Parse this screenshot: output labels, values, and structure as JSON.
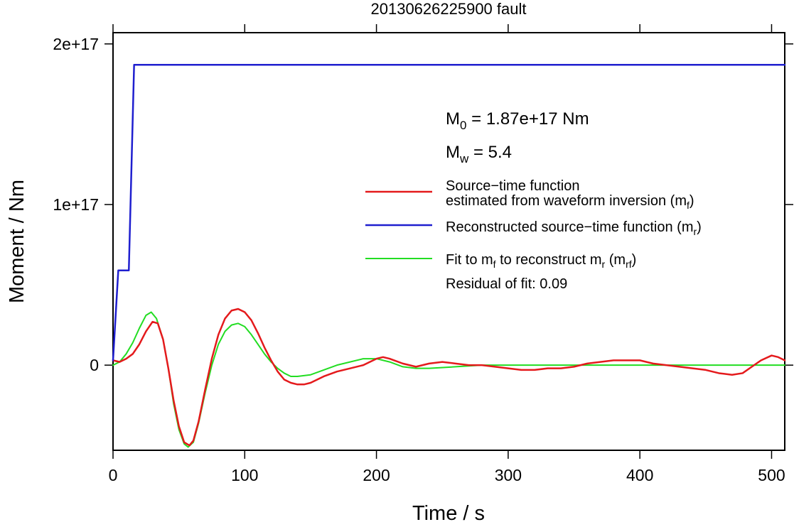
{
  "chart_data": {
    "type": "line",
    "title": "20130626225900 fault",
    "xlabel": "Time / s",
    "ylabel": "Moment / Nm",
    "xlim": [
      0,
      510
    ],
    "ylim": [
      -5.3e+16,
      2.07e+17
    ],
    "x_ticks": [
      0,
      100,
      200,
      300,
      400,
      500
    ],
    "x_tick_labels": [
      "0",
      "100",
      "200",
      "300",
      "400",
      "500"
    ],
    "y_ticks": [
      0,
      1e+17,
      2e+17
    ],
    "y_tick_labels": [
      "0",
      "1e+17",
      "2e+17"
    ],
    "grid": false,
    "legend_position": "right",
    "annotations": {
      "m0": {
        "symbol": "M",
        "sub": "0",
        "text": " = 1.87e+17 Nm"
      },
      "mw": {
        "symbol": "M",
        "sub": "w",
        "text": " = 5.4"
      },
      "residual": "Residual of fit: 0.09"
    },
    "series": [
      {
        "name": "Source−time function estimated from waveform inversion (m_f)",
        "legend_line1": "Source−time function",
        "legend_line2_pre": "estimated from waveform inversion (m",
        "legend_line2_sub": "f",
        "legend_line2_post": ")",
        "color": "#e41a1c",
        "stroke_width": 2.5,
        "points": [
          [
            0,
            3000000000000000.0
          ],
          [
            5,
            2000000000000000.0
          ],
          [
            10,
            4000000000000000.0
          ],
          [
            15,
            7000000000000000.0
          ],
          [
            20,
            1.3e+16
          ],
          [
            25,
            2.1e+16
          ],
          [
            30,
            2.7e+16
          ],
          [
            34,
            2.6e+16
          ],
          [
            38,
            1.6e+16
          ],
          [
            42,
            -2000000000000000.0
          ],
          [
            46,
            -2.2e+16
          ],
          [
            50,
            -3.8e+16
          ],
          [
            54,
            -4.8e+16
          ],
          [
            58,
            -5e+16
          ],
          [
            61,
            -4.7e+16
          ],
          [
            65,
            -3.5e+16
          ],
          [
            70,
            -1.5e+16
          ],
          [
            75,
            4000000000000000.0
          ],
          [
            80,
            1.9e+16
          ],
          [
            85,
            2.9e+16
          ],
          [
            90,
            3.4e+16
          ],
          [
            95,
            3.5e+16
          ],
          [
            100,
            3.3e+16
          ],
          [
            105,
            2.8e+16
          ],
          [
            110,
            2e+16
          ],
          [
            115,
            1.1e+16
          ],
          [
            120,
            3000000000000000.0
          ],
          [
            125,
            -4000000000000000.0
          ],
          [
            130,
            -9000000000000000.0
          ],
          [
            135,
            -1.1e+16
          ],
          [
            140,
            -1.2e+16
          ],
          [
            145,
            -1.2e+16
          ],
          [
            150,
            -1.1e+16
          ],
          [
            160,
            -7000000000000000.0
          ],
          [
            170,
            -4000000000000000.0
          ],
          [
            180,
            -2000000000000000.0
          ],
          [
            190,
            0
          ],
          [
            200,
            4000000000000000.0
          ],
          [
            205,
            5000000000000000.0
          ],
          [
            210,
            4000000000000000.0
          ],
          [
            220,
            1000000000000000.0
          ],
          [
            230,
            -1000000000000000.0
          ],
          [
            240,
            1000000000000000.0
          ],
          [
            250,
            2000000000000000.0
          ],
          [
            260,
            1000000000000000.0
          ],
          [
            270,
            0
          ],
          [
            280,
            0
          ],
          [
            290,
            -1000000000000000.0
          ],
          [
            300,
            -2000000000000000.0
          ],
          [
            310,
            -3000000000000000.0
          ],
          [
            320,
            -3000000000000000.0
          ],
          [
            330,
            -2000000000000000.0
          ],
          [
            340,
            -2000000000000000.0
          ],
          [
            350,
            -1000000000000000.0
          ],
          [
            360,
            1000000000000000.0
          ],
          [
            370,
            2000000000000000.0
          ],
          [
            380,
            3000000000000000.0
          ],
          [
            390,
            3000000000000000.0
          ],
          [
            400,
            3000000000000000.0
          ],
          [
            410,
            1000000000000000.0
          ],
          [
            420,
            0
          ],
          [
            430,
            -1000000000000000.0
          ],
          [
            440,
            -2000000000000000.0
          ],
          [
            450,
            -3000000000000000.0
          ],
          [
            460,
            -5000000000000000.0
          ],
          [
            470,
            -6000000000000000.0
          ],
          [
            478,
            -5000000000000000.0
          ],
          [
            485,
            -1000000000000000.0
          ],
          [
            492,
            3000000000000000.0
          ],
          [
            500,
            6000000000000000.0
          ],
          [
            505,
            5000000000000000.0
          ],
          [
            510,
            3000000000000000.0
          ]
        ]
      },
      {
        "name": "Reconstructed source−time function (m_r)",
        "legend_line1_pre": "Reconstructed source−time function (m",
        "legend_line1_sub": "r",
        "legend_line1_post": ")",
        "color": "#1f1fcf",
        "stroke_width": 2.5,
        "points": [
          [
            0,
            3000000000000000.0
          ],
          [
            4,
            5.9e+16
          ],
          [
            12,
            5.9e+16
          ],
          [
            16,
            1.87e+17
          ],
          [
            510,
            1.87e+17
          ]
        ]
      },
      {
        "name": "Fit to m_f to reconstruct m_r (m_rf)",
        "legend_line1_pre": "Fit to m",
        "legend_line1_sub1": "f",
        "legend_line1_mid": " to reconstruct m",
        "legend_line1_sub2": "r",
        "legend_line1_mid2": " (m",
        "legend_line1_sub3": "rf",
        "legend_line1_post": ")",
        "color": "#22dd22",
        "stroke_width": 2,
        "points": [
          [
            0,
            0
          ],
          [
            5,
            2000000000000000.0
          ],
          [
            10,
            7000000000000000.0
          ],
          [
            15,
            1.4e+16
          ],
          [
            20,
            2.3e+16
          ],
          [
            25,
            3.1e+16
          ],
          [
            29,
            3.3e+16
          ],
          [
            33,
            2.9e+16
          ],
          [
            38,
            1.6e+16
          ],
          [
            42,
            -2000000000000000.0
          ],
          [
            46,
            -2.4e+16
          ],
          [
            50,
            -4e+16
          ],
          [
            54,
            -4.9e+16
          ],
          [
            57,
            -5.1e+16
          ],
          [
            61,
            -4.8e+16
          ],
          [
            65,
            -3.6e+16
          ],
          [
            70,
            -1.7e+16
          ],
          [
            75,
            0
          ],
          [
            80,
            1.3e+16
          ],
          [
            85,
            2.1e+16
          ],
          [
            90,
            2.5e+16
          ],
          [
            95,
            2.6e+16
          ],
          [
            100,
            2.4e+16
          ],
          [
            105,
            1.9e+16
          ],
          [
            110,
            1.3e+16
          ],
          [
            115,
            7000000000000000.0
          ],
          [
            120,
            2000000000000000.0
          ],
          [
            125,
            -2000000000000000.0
          ],
          [
            130,
            -5000000000000000.0
          ],
          [
            135,
            -7000000000000000.0
          ],
          [
            140,
            -7000000000000000.0
          ],
          [
            150,
            -6000000000000000.0
          ],
          [
            160,
            -3000000000000000.0
          ],
          [
            170,
            0
          ],
          [
            180,
            2000000000000000.0
          ],
          [
            190,
            4000000000000000.0
          ],
          [
            195,
            4000000000000000.0
          ],
          [
            200,
            4000000000000000.0
          ],
          [
            210,
            2000000000000000.0
          ],
          [
            220,
            -1000000000000000.0
          ],
          [
            230,
            -2000000000000000.0
          ],
          [
            240,
            -2000000000000000.0
          ],
          [
            260,
            -1000000000000000.0
          ],
          [
            280,
            0
          ],
          [
            300,
            0
          ],
          [
            510,
            0
          ]
        ]
      }
    ]
  }
}
